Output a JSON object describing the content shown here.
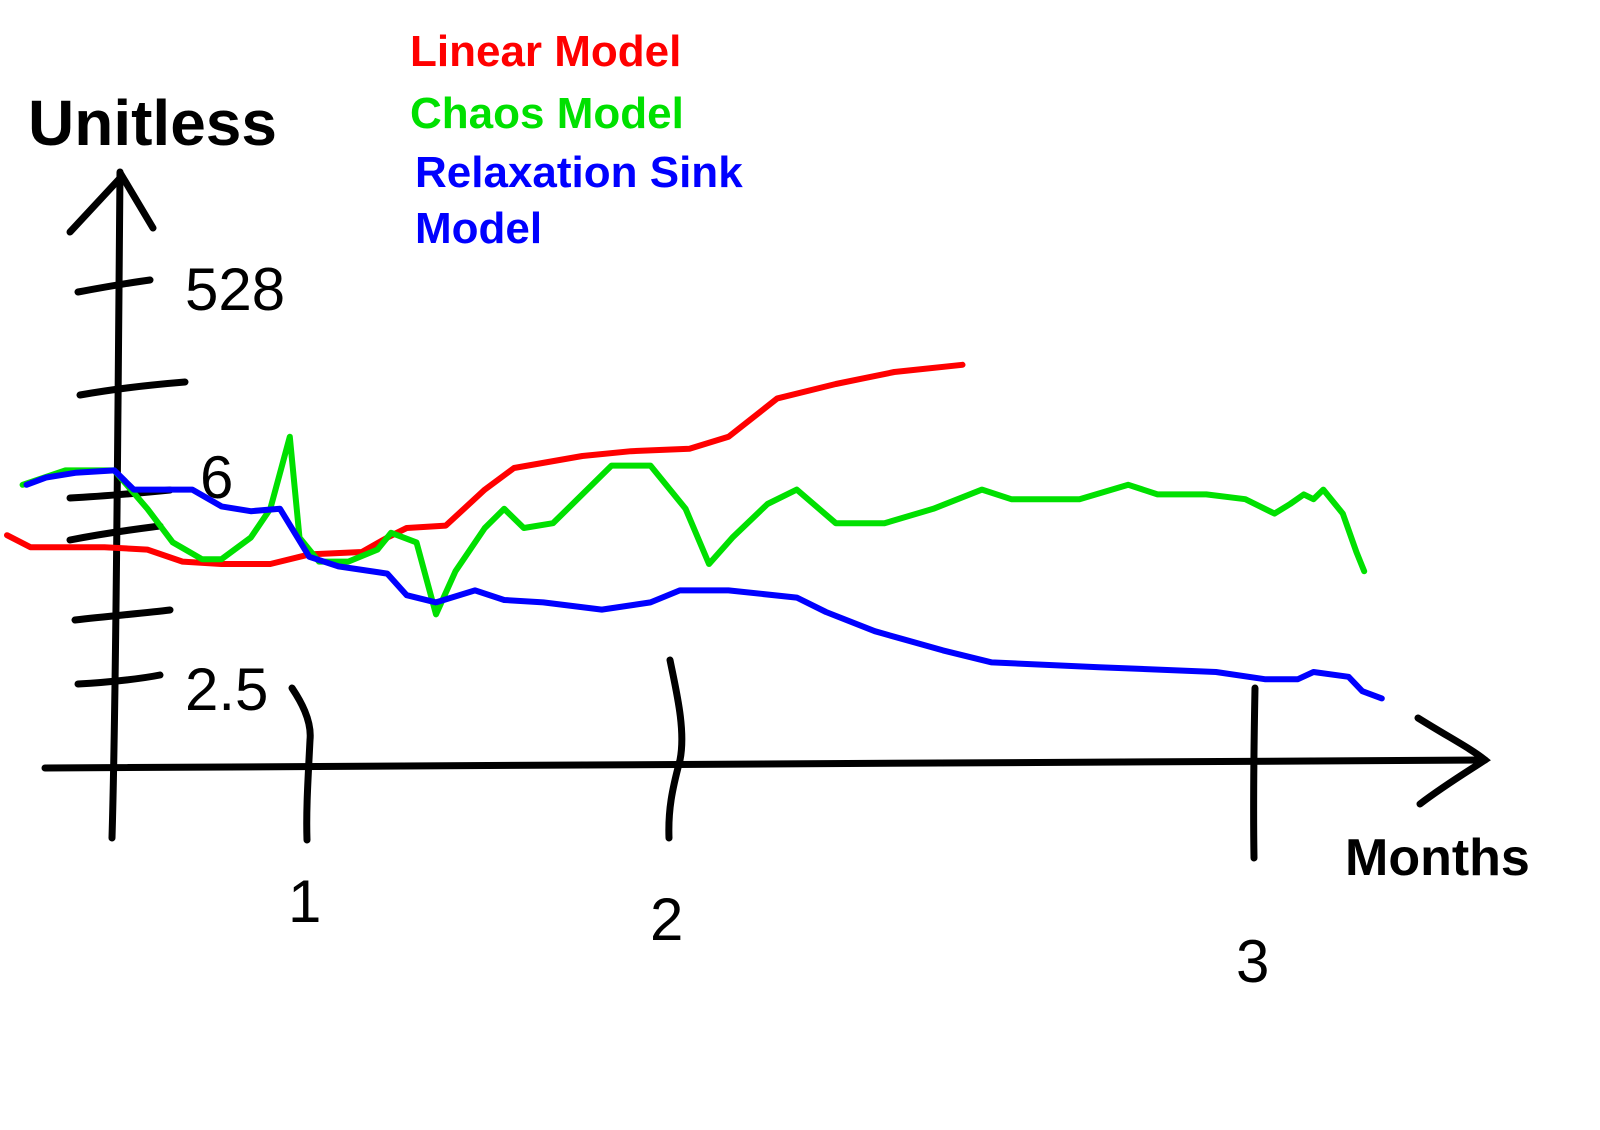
{
  "chart_data": {
    "type": "line",
    "ylabel": "Unitless",
    "xlabel": "Months",
    "y_tick_labels": [
      "528",
      "6",
      "2.5"
    ],
    "x_tick_labels": [
      "1",
      "2",
      "3"
    ],
    "legend_position": "top-center",
    "series": [
      {
        "name": "Linear Model",
        "color": "#ff0000",
        "points": [
          [
            0.0,
            4.85
          ],
          [
            0.12,
            4.6
          ],
          [
            0.5,
            4.6
          ],
          [
            0.72,
            4.55
          ],
          [
            0.9,
            4.3
          ],
          [
            1.1,
            4.25
          ],
          [
            1.35,
            4.25
          ],
          [
            1.55,
            4.45
          ],
          [
            1.82,
            4.5
          ],
          [
            1.95,
            4.8
          ],
          [
            2.05,
            5.0
          ],
          [
            2.25,
            5.05
          ],
          [
            2.45,
            5.8
          ],
          [
            2.6,
            6.25
          ],
          [
            2.95,
            6.5
          ],
          [
            3.2,
            6.6
          ],
          [
            3.5,
            6.65
          ],
          [
            3.7,
            6.9
          ],
          [
            3.95,
            7.7
          ],
          [
            4.25,
            8.0
          ],
          [
            4.55,
            8.25
          ],
          [
            4.9,
            8.4
          ]
        ]
      },
      {
        "name": "Chaos Model",
        "color": "#00e000",
        "points": [
          [
            0.08,
            5.9
          ],
          [
            0.3,
            6.2
          ],
          [
            0.55,
            6.2
          ],
          [
            0.72,
            5.4
          ],
          [
            0.85,
            4.7
          ],
          [
            1.0,
            4.35
          ],
          [
            1.1,
            4.35
          ],
          [
            1.25,
            4.8
          ],
          [
            1.35,
            5.4
          ],
          [
            1.45,
            6.9
          ],
          [
            1.5,
            4.8
          ],
          [
            1.6,
            4.3
          ],
          [
            1.75,
            4.3
          ],
          [
            1.9,
            4.55
          ],
          [
            1.97,
            4.9
          ],
          [
            2.1,
            4.7
          ],
          [
            2.2,
            3.2
          ],
          [
            2.3,
            4.1
          ],
          [
            2.45,
            5.0
          ],
          [
            2.55,
            5.4
          ],
          [
            2.65,
            5.0
          ],
          [
            2.8,
            5.1
          ],
          [
            2.95,
            5.7
          ],
          [
            3.1,
            6.3
          ],
          [
            3.3,
            6.3
          ],
          [
            3.48,
            5.4
          ],
          [
            3.6,
            4.25
          ],
          [
            3.72,
            4.8
          ],
          [
            3.9,
            5.5
          ],
          [
            4.05,
            5.8
          ],
          [
            4.25,
            5.1
          ],
          [
            4.5,
            5.1
          ],
          [
            4.75,
            5.4
          ],
          [
            5.0,
            5.8
          ],
          [
            5.15,
            5.6
          ],
          [
            5.5,
            5.6
          ],
          [
            5.75,
            5.9
          ],
          [
            5.9,
            5.7
          ],
          [
            6.15,
            5.7
          ],
          [
            6.35,
            5.6
          ],
          [
            6.5,
            5.3
          ],
          [
            6.58,
            5.5
          ],
          [
            6.65,
            5.7
          ],
          [
            6.7,
            5.6
          ],
          [
            6.75,
            5.8
          ],
          [
            6.85,
            5.3
          ],
          [
            6.92,
            4.5
          ],
          [
            6.96,
            4.1
          ]
        ]
      },
      {
        "name": "Relaxation Sink Model",
        "color": "#0000ff",
        "points": [
          [
            0.1,
            5.9
          ],
          [
            0.2,
            6.05
          ],
          [
            0.35,
            6.15
          ],
          [
            0.55,
            6.2
          ],
          [
            0.65,
            5.8
          ],
          [
            0.95,
            5.8
          ],
          [
            1.1,
            5.45
          ],
          [
            1.25,
            5.35
          ],
          [
            1.4,
            5.4
          ],
          [
            1.55,
            4.4
          ],
          [
            1.7,
            4.2
          ],
          [
            1.95,
            4.05
          ],
          [
            2.05,
            3.6
          ],
          [
            2.2,
            3.45
          ],
          [
            2.4,
            3.7
          ],
          [
            2.55,
            3.5
          ],
          [
            2.75,
            3.45
          ],
          [
            3.05,
            3.3
          ],
          [
            3.3,
            3.45
          ],
          [
            3.45,
            3.7
          ],
          [
            3.7,
            3.7
          ],
          [
            4.05,
            3.55
          ],
          [
            4.2,
            3.25
          ],
          [
            4.45,
            2.85
          ],
          [
            4.8,
            2.45
          ],
          [
            5.05,
            2.2
          ],
          [
            5.6,
            2.1
          ],
          [
            6.2,
            2.0
          ],
          [
            6.45,
            1.85
          ],
          [
            6.62,
            1.85
          ],
          [
            6.7,
            2.0
          ],
          [
            6.88,
            1.9
          ],
          [
            6.95,
            1.6
          ],
          [
            7.05,
            1.45
          ]
        ]
      }
    ]
  }
}
